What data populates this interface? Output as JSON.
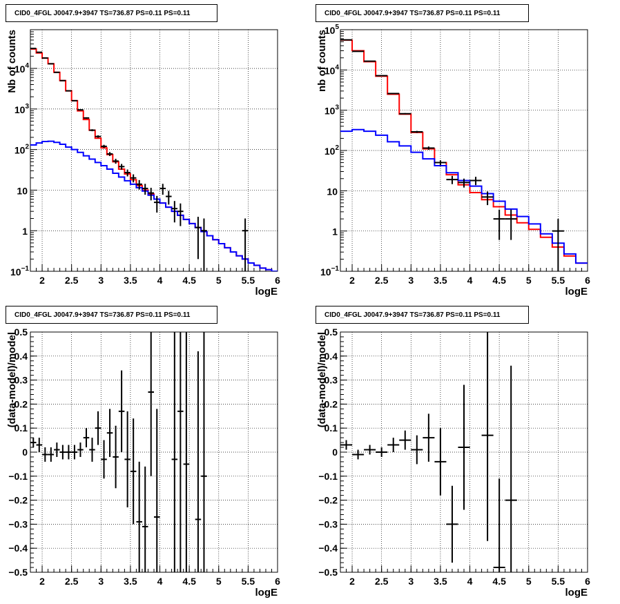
{
  "chart_data": [
    {
      "type": "line",
      "panel": "top-left",
      "title": "CID0_4FGL J0047.9+3947 TS=736.87 PS=0.11 PS=0.11",
      "xlabel": "logE",
      "ylabel": "Nb of counts",
      "xlim": [
        1.8,
        6.0
      ],
      "ylim": [
        0.1,
        90000
      ],
      "yscale": "log",
      "grid": true,
      "x_ticks": [
        "2",
        "2.5",
        "3",
        "3.5",
        "4",
        "4.5",
        "5",
        "5.5",
        "6"
      ],
      "y_ticks": [
        {
          "v": 0.1,
          "base": "10",
          "exp": "−1"
        },
        {
          "v": 1,
          "label": "1"
        },
        {
          "v": 10,
          "label": "10"
        },
        {
          "v": 100,
          "base": "10",
          "exp": "2"
        },
        {
          "v": 1000,
          "base": "10",
          "exp": "3"
        },
        {
          "v": 10000,
          "base": "10",
          "exp": "4"
        }
      ],
      "bin_width": 0.1,
      "series": [
        {
          "color": "#ff0000",
          "x": [
            1.85,
            1.95,
            2.05,
            2.15,
            2.25,
            2.35,
            2.45,
            2.55,
            2.65,
            2.75,
            2.85,
            2.95,
            3.05,
            3.15,
            3.25,
            3.35,
            3.45,
            3.55,
            3.65,
            3.75,
            3.85,
            3.95,
            4.05,
            4.15,
            4.25,
            4.35,
            4.45,
            4.55,
            4.65,
            4.75,
            4.85,
            4.95,
            5.05,
            5.15,
            5.25,
            5.35,
            5.45,
            5.55,
            5.65,
            5.75,
            5.85,
            5.95
          ],
          "values": [
            30000,
            24000,
            18000,
            13000,
            8000,
            5000,
            2800,
            1600,
            900,
            550,
            300,
            190,
            110,
            75,
            50,
            33,
            25,
            18,
            13,
            10,
            8,
            6,
            4.8,
            3.8,
            3,
            2.4,
            1.9,
            1.5,
            1.2,
            0.95,
            0.75,
            0.6,
            0.48,
            0.38,
            0.3,
            0.24,
            0.2,
            0.16,
            0.14,
            0.12,
            0.11,
            0.1
          ]
        },
        {
          "color": "#0000ff",
          "x": [
            1.85,
            1.95,
            2.05,
            2.15,
            2.25,
            2.35,
            2.45,
            2.55,
            2.65,
            2.75,
            2.85,
            2.95,
            3.05,
            3.15,
            3.25,
            3.35,
            3.45,
            3.55,
            3.65,
            3.75,
            3.85,
            3.95,
            4.05,
            4.15,
            4.25,
            4.35,
            4.45,
            4.55,
            4.65,
            4.75,
            4.85,
            4.95,
            5.05,
            5.15,
            5.25,
            5.35,
            5.45,
            5.55,
            5.65,
            5.75,
            5.85,
            5.95
          ],
          "values": [
            130,
            145,
            158,
            160,
            150,
            135,
            115,
            100,
            85,
            70,
            58,
            48,
            40,
            33,
            26,
            21,
            17,
            14,
            11.5,
            9.5,
            7.5,
            6,
            4.8,
            3.8,
            3,
            2.4,
            1.9,
            1.5,
            1.2,
            0.95,
            0.75,
            0.6,
            0.48,
            0.38,
            0.3,
            0.24,
            0.2,
            0.16,
            0.14,
            0.12,
            0.11,
            0.1
          ]
        },
        {
          "color": "#000000",
          "x": [
            1.85,
            1.95,
            2.05,
            2.15,
            2.25,
            2.35,
            2.45,
            2.55,
            2.65,
            2.75,
            2.85,
            2.95,
            3.05,
            3.15,
            3.25,
            3.35,
            3.45,
            3.55,
            3.65,
            3.75,
            3.85,
            3.95,
            4.05,
            4.15,
            4.25,
            4.35,
            4.65,
            4.75,
            5.45
          ],
          "values": [
            31000,
            25000,
            18000,
            13000,
            8000,
            5000,
            2800,
            1600,
            950,
            600,
            300,
            210,
            120,
            78,
            52,
            38,
            27,
            20,
            14,
            11,
            8.5,
            5,
            11,
            7,
            3.5,
            3,
            1.2,
            1,
            1
          ],
          "errors": [
            176,
            158,
            134,
            114,
            89,
            71,
            53,
            40,
            31,
            24,
            17,
            14,
            11,
            8.8,
            7.2,
            6.2,
            5.2,
            4.5,
            3.7,
            3.3,
            2.9,
            2.2,
            3.3,
            2.6,
            1.9,
            1.7,
            1,
            1,
            1
          ]
        }
      ]
    },
    {
      "type": "line",
      "panel": "top-right",
      "title": "CID0_4FGL J0047.9+3947 TS=736.87 PS=0.11 PS=0.11",
      "xlabel": "logE",
      "ylabel": "nb of counts",
      "xlim": [
        1.8,
        6.0
      ],
      "ylim": [
        0.1,
        100000
      ],
      "yscale": "log",
      "grid": true,
      "x_ticks": [
        "2",
        "2.5",
        "3",
        "3.5",
        "4",
        "4.5",
        "5",
        "5.5",
        "6"
      ],
      "y_ticks": [
        {
          "v": 0.1,
          "base": "10",
          "exp": "−1"
        },
        {
          "v": 1,
          "label": "1"
        },
        {
          "v": 10,
          "label": "10"
        },
        {
          "v": 100,
          "base": "10",
          "exp": "2"
        },
        {
          "v": 1000,
          "base": "10",
          "exp": "3"
        },
        {
          "v": 10000,
          "base": "10",
          "exp": "4"
        },
        {
          "v": 100000,
          "base": "10",
          "exp": "5"
        }
      ],
      "bin_width": 0.2,
      "series": [
        {
          "color": "#ff0000",
          "x": [
            1.9,
            2.1,
            2.3,
            2.5,
            2.7,
            2.9,
            3.1,
            3.3,
            3.5,
            3.7,
            3.9,
            4.1,
            4.3,
            4.5,
            4.7,
            4.9,
            5.1,
            5.3,
            5.5,
            5.7,
            5.9
          ],
          "values": [
            55000,
            30000,
            16000,
            7000,
            2500,
            800,
            280,
            110,
            50,
            25,
            14,
            9,
            6,
            4,
            2.5,
            1.6,
            1.1,
            0.7,
            0.4,
            0.24,
            0.16
          ]
        },
        {
          "color": "#0000ff",
          "x": [
            1.9,
            2.1,
            2.3,
            2.5,
            2.7,
            2.9,
            3.1,
            3.3,
            3.5,
            3.7,
            3.9,
            4.1,
            4.3,
            4.5,
            4.7,
            4.9,
            5.1,
            5.3,
            5.5,
            5.7,
            5.9
          ],
          "values": [
            300,
            330,
            300,
            240,
            165,
            130,
            90,
            62,
            42,
            28,
            18,
            13,
            8.5,
            5.5,
            3.5,
            2.3,
            1.5,
            0.85,
            0.5,
            0.27,
            0.16
          ]
        },
        {
          "color": "#000000",
          "x": [
            1.9,
            2.1,
            2.3,
            2.5,
            2.7,
            2.9,
            3.1,
            3.3,
            3.5,
            3.7,
            3.9,
            4.1,
            4.3,
            4.5,
            4.7,
            5.5
          ],
          "values": [
            56000,
            29000,
            16500,
            7200,
            2600,
            820,
            290,
            115,
            50,
            19,
            16,
            18,
            7,
            2,
            2,
            1
          ],
          "errors": [
            237,
            170,
            128,
            85,
            51,
            29,
            17,
            10.7,
            7,
            4.4,
            4,
            4.2,
            2.6,
            1.4,
            1.4,
            1
          ]
        }
      ]
    },
    {
      "type": "scatter",
      "panel": "bottom-left",
      "title": "CID0_4FGL J0047.9+3947 TS=736.87 PS=0.11 PS=0.11",
      "xlabel": "logE",
      "ylabel": "(data-model)/model",
      "xlim": [
        1.8,
        6.0
      ],
      "ylim": [
        -0.5,
        0.5
      ],
      "grid": true,
      "x_ticks": [
        "2",
        "2.5",
        "3",
        "3.5",
        "4",
        "4.5",
        "5",
        "5.5",
        "6"
      ],
      "y_ticks": [
        "−0.5",
        "−0.4",
        "−0.3",
        "−0.2",
        "−0.1",
        "0",
        "0.1",
        "0.2",
        "0.3",
        "0.4",
        "0.5"
      ],
      "bin_width": 0.1,
      "series": [
        {
          "color": "#000000",
          "x": [
            1.85,
            1.95,
            2.05,
            2.15,
            2.25,
            2.35,
            2.45,
            2.55,
            2.65,
            2.75,
            2.85,
            2.95,
            3.05,
            3.15,
            3.25,
            3.35,
            3.45,
            3.55,
            3.65,
            3.75,
            3.85,
            3.95,
            4.25,
            4.35,
            4.45,
            4.65,
            4.75
          ],
          "values": [
            0.04,
            0.03,
            -0.01,
            -0.01,
            0.01,
            0.0,
            0.0,
            0.0,
            0.01,
            0.06,
            0.01,
            0.1,
            -0.03,
            0.08,
            -0.02,
            0.17,
            -0.03,
            -0.08,
            -0.29,
            -0.31,
            0.25,
            -0.27,
            -0.03,
            0.17,
            -0.05,
            -0.28,
            -0.1
          ],
          "errors": [
            0.02,
            0.03,
            0.03,
            0.03,
            0.03,
            0.03,
            0.03,
            0.03,
            0.03,
            0.04,
            0.05,
            0.07,
            0.08,
            0.1,
            0.13,
            0.17,
            0.2,
            0.22,
            0.25,
            0.25,
            0.35,
            0.45,
            0.6,
            0.7,
            0.9,
            0.7,
            0.8
          ]
        }
      ]
    },
    {
      "type": "scatter",
      "panel": "bottom-right",
      "title": "CID0_4FGL J0047.9+3947 TS=736.87 PS=0.11 PS=0.11",
      "xlabel": "logE",
      "ylabel": "(data-model)/model",
      "xlim": [
        1.8,
        6.0
      ],
      "ylim": [
        -0.5,
        0.5
      ],
      "grid": true,
      "x_ticks": [
        "2",
        "2.5",
        "3",
        "3.5",
        "4",
        "4.5",
        "5",
        "5.5",
        "6"
      ],
      "y_ticks": [
        "−0.5",
        "−0.4",
        "−0.3",
        "−0.2",
        "−0.1",
        "0",
        "0.1",
        "0.2",
        "0.3",
        "0.4",
        "0.5"
      ],
      "bin_width": 0.2,
      "series": [
        {
          "color": "#000000",
          "x": [
            1.9,
            2.1,
            2.3,
            2.5,
            2.7,
            2.9,
            3.1,
            3.3,
            3.5,
            3.7,
            3.9,
            4.3,
            4.5,
            4.7
          ],
          "values": [
            0.03,
            -0.01,
            0.01,
            0.0,
            0.03,
            0.05,
            0.01,
            0.06,
            -0.04,
            -0.3,
            0.02,
            0.07,
            -0.48,
            -0.2
          ],
          "errors": [
            0.02,
            0.02,
            0.02,
            0.02,
            0.03,
            0.04,
            0.06,
            0.1,
            0.14,
            0.16,
            0.26,
            0.44,
            0.37,
            0.56
          ]
        }
      ]
    }
  ]
}
